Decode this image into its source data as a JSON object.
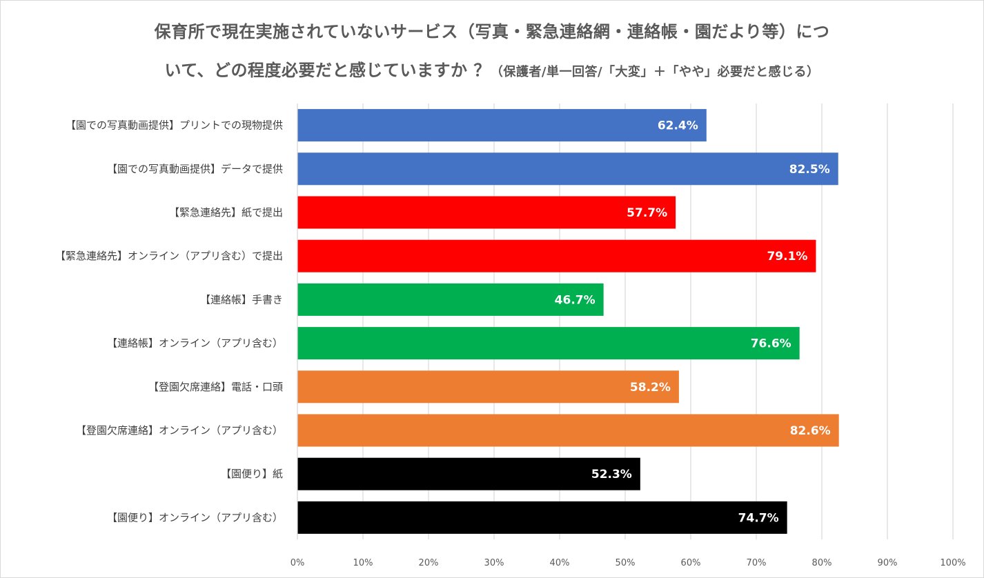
{
  "chart_data": {
    "type": "bar",
    "orientation": "horizontal",
    "title_line1": "保育所で現在実施されていないサービス（写真・緊急連絡網・連絡帳・園だより等）につ",
    "title_line2": "いて、どの程度必要だと感じていますか ？",
    "subtitle": "（保護者/単一回答/「大変」＋「やや」必要だと感じる）",
    "categories": [
      "【園での写真動画提供】プリントでの現物提供",
      "【園での写真動画提供】データで提供",
      "【緊急連絡先】紙で提出",
      "【緊急連絡先】オンライン（アプリ含む）で提出",
      "【連絡帳】手書き",
      "【連絡帳】オンライン（アプリ含む）",
      "【登園欠席連絡】電話・口頭",
      "【登園欠席連絡】オンライン（アプリ含む）",
      "【園便り】紙",
      "【園便り】オンライン（アプリ含む）"
    ],
    "values": [
      62.4,
      82.5,
      57.7,
      79.1,
      46.7,
      76.6,
      58.2,
      82.6,
      52.3,
      74.7
    ],
    "data_labels": [
      "62.4%",
      "82.5%",
      "57.7%",
      "79.1%",
      "46.7%",
      "76.6%",
      "58.2%",
      "82.6%",
      "52.3%",
      "74.7%"
    ],
    "colors": [
      "#4472C4",
      "#4472C4",
      "#FF0000",
      "#FF0000",
      "#00B050",
      "#00B050",
      "#ED7D31",
      "#ED7D31",
      "#000000",
      "#000000"
    ],
    "xlim": [
      0,
      100
    ],
    "x_ticks": [
      "0%",
      "10%",
      "20%",
      "30%",
      "40%",
      "50%",
      "60%",
      "70%",
      "80%",
      "90%",
      "100%"
    ],
    "grid": "vertical",
    "legend": "none",
    "xlabel": "",
    "ylabel": ""
  }
}
